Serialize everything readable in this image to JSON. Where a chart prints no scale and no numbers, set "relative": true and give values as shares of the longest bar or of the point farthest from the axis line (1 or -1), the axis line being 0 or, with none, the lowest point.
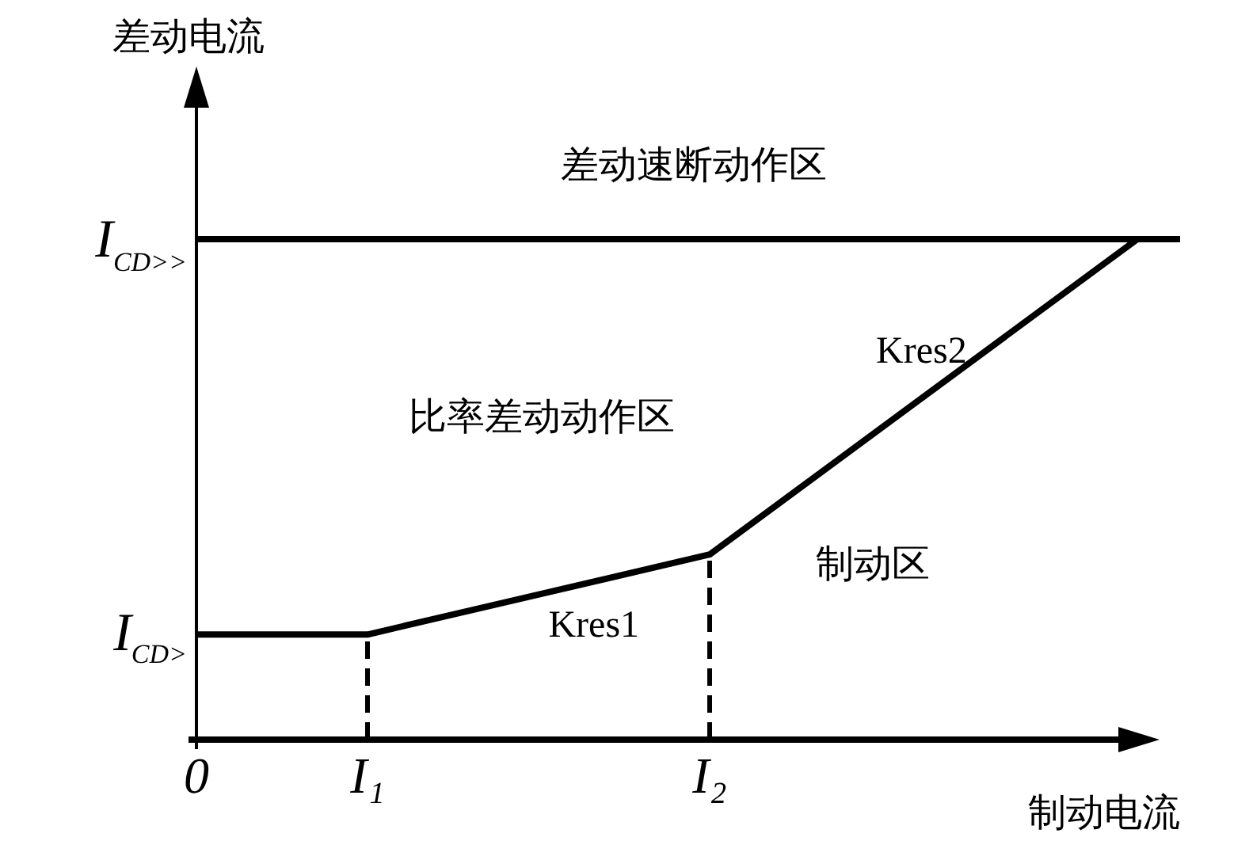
{
  "chart_data": {
    "type": "line",
    "relative": true,
    "xlabel": "制动电流",
    "ylabel": "差动电流",
    "categories": [
      "0",
      null,
      null,
      null,
      "I₁",
      null,
      null,
      null,
      null,
      null,
      null,
      null,
      "I₂",
      null,
      null,
      null,
      null,
      null,
      null,
      null,
      null,
      null,
      null,
      null
    ],
    "series": [
      {
        "color": "#000000",
        "values": [
          0.21,
          null,
          null,
          null,
          0.21,
          null,
          null,
          null,
          null,
          null,
          null,
          null,
          0.37,
          null,
          null,
          null,
          null,
          null,
          null,
          null,
          null,
          null,
          1,
          null
        ],
        "line_style": "solid"
      },
      {
        "color": "#000000",
        "x": [
          "I₁",
          "I₁"
        ],
        "values": [
          0,
          0.21
        ],
        "line_style": "dashed"
      },
      {
        "color": "#000000",
        "x": [
          "I₂",
          "I₂"
        ],
        "values": [
          0,
          0.37
        ],
        "line_style": "dashed"
      }
    ],
    "ref_lines": [
      {
        "axis": "y",
        "value": 1,
        "label": "I$_{CD>>}$",
        "color": "#000000"
      }
    ],
    "annotations": [
      "差动速断动作区",
      {
        "text": "I$_{CD>}$",
        "x": "0",
        "y": 0.21
      },
      "比率差动动作区",
      "Kres2",
      "制动区",
      "Kres1"
    ]
  }
}
